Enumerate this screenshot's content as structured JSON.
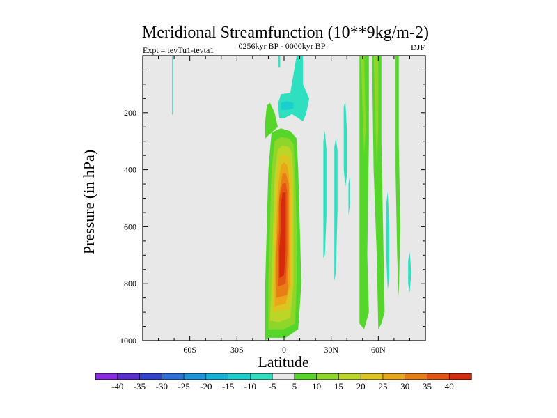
{
  "chart_data": {
    "type": "contour",
    "title": "Meridional Streamfunction (10**9kg/m-2)",
    "subtitle_left": "Expt = tevTu1-tevta1",
    "subtitle_center": "0256kyr BP - 0000kyr BP",
    "subtitle_right": "DJF",
    "xlabel": "Latitude",
    "ylabel": "Pressure (in hPa)",
    "xlim": [
      -90,
      90
    ],
    "ylim": [
      1000,
      0
    ],
    "x_ticks": [
      {
        "value": -60,
        "label": "60S"
      },
      {
        "value": -30,
        "label": "30S"
      },
      {
        "value": 0,
        "label": "0"
      },
      {
        "value": 30,
        "label": "30N"
      },
      {
        "value": 60,
        "label": "60N"
      }
    ],
    "y_ticks": [
      {
        "value": 200,
        "label": "200"
      },
      {
        "value": 400,
        "label": "400"
      },
      {
        "value": 600,
        "label": "600"
      },
      {
        "value": 800,
        "label": "800"
      },
      {
        "value": 1000,
        "label": "1000"
      }
    ],
    "background_color": "#e8e8e8",
    "colorbar": {
      "labels": [
        "-40",
        "-35",
        "-30",
        "-25",
        "-20",
        "-15",
        "-10",
        "-5",
        "5",
        "10",
        "15",
        "20",
        "25",
        "30",
        "35",
        "40"
      ],
      "colors": [
        "#8a2be2",
        "#5a2fd0",
        "#3443cf",
        "#2b6fd8",
        "#1e94dd",
        "#14b3d9",
        "#1bcfcf",
        "#2ee0c0",
        "#e8e8e8",
        "#56d62b",
        "#8ed62a",
        "#bcd627",
        "#dcc51f",
        "#e8a618",
        "#e97e15",
        "#e35512",
        "#d62a0c"
      ]
    },
    "regions": [
      {
        "name": "positive-cell-southern",
        "level": 5,
        "color": "#56d62b",
        "polygon": [
          [
            -12,
            1000
          ],
          [
            -12,
            800
          ],
          [
            -11,
            600
          ],
          [
            -10,
            400
          ],
          [
            -8,
            270
          ],
          [
            -2,
            255
          ],
          [
            4,
            265
          ],
          [
            8,
            290
          ],
          [
            9,
            400
          ],
          [
            10,
            600
          ],
          [
            11,
            800
          ],
          [
            9,
            960
          ],
          [
            1,
            990
          ],
          [
            -10,
            990
          ]
        ]
      },
      {
        "name": "positive-cell-southern",
        "level": 10,
        "color": "#8ed62a",
        "polygon": [
          [
            -10,
            960
          ],
          [
            -10,
            800
          ],
          [
            -9,
            600
          ],
          [
            -8,
            400
          ],
          [
            -6,
            300
          ],
          [
            -2,
            285
          ],
          [
            3,
            290
          ],
          [
            6,
            310
          ],
          [
            7,
            400
          ],
          [
            8,
            600
          ],
          [
            8,
            800
          ],
          [
            7,
            940
          ],
          [
            0,
            960
          ]
        ]
      },
      {
        "name": "positive-cell-southern",
        "level": 15,
        "color": "#bcd627",
        "polygon": [
          [
            -9,
            930
          ],
          [
            -8,
            800
          ],
          [
            -7,
            600
          ],
          [
            -6,
            420
          ],
          [
            -4,
            330
          ],
          [
            -1,
            315
          ],
          [
            3,
            320
          ],
          [
            5,
            340
          ],
          [
            6,
            420
          ],
          [
            6,
            600
          ],
          [
            6,
            800
          ],
          [
            4,
            920
          ],
          [
            -3,
            935
          ]
        ]
      },
      {
        "name": "positive-cell-southern",
        "level": 20,
        "color": "#dcc51f",
        "polygon": [
          [
            -7,
            900
          ],
          [
            -7,
            800
          ],
          [
            -6,
            600
          ],
          [
            -5,
            440
          ],
          [
            -3,
            355
          ],
          [
            0,
            345
          ],
          [
            3,
            355
          ],
          [
            4,
            380
          ],
          [
            5,
            450
          ],
          [
            5,
            600
          ],
          [
            5,
            800
          ],
          [
            3,
            890
          ]
        ]
      },
      {
        "name": "positive-cell-southern",
        "level": 25,
        "color": "#e8a618",
        "polygon": [
          [
            -6,
            880
          ],
          [
            -6,
            750
          ],
          [
            -5,
            600
          ],
          [
            -4,
            470
          ],
          [
            -2,
            385
          ],
          [
            0,
            375
          ],
          [
            2,
            385
          ],
          [
            3,
            420
          ],
          [
            4,
            500
          ],
          [
            4,
            650
          ],
          [
            4,
            800
          ],
          [
            1,
            870
          ]
        ]
      },
      {
        "name": "positive-cell-southern",
        "level": 30,
        "color": "#e97e15",
        "polygon": [
          [
            -5,
            850
          ],
          [
            -5,
            700
          ],
          [
            -4,
            580
          ],
          [
            -3,
            480
          ],
          [
            -1,
            415
          ],
          [
            1,
            410
          ],
          [
            3,
            450
          ],
          [
            3,
            550
          ],
          [
            3,
            700
          ],
          [
            2,
            840
          ]
        ]
      },
      {
        "name": "positive-cell-southern",
        "level": 35,
        "color": "#e35512",
        "polygon": [
          [
            -4,
            810
          ],
          [
            -4,
            700
          ],
          [
            -3,
            600
          ],
          [
            -3,
            500
          ],
          [
            -1,
            450
          ],
          [
            1,
            445
          ],
          [
            2,
            480
          ],
          [
            2,
            580
          ],
          [
            2,
            700
          ],
          [
            1,
            800
          ]
        ]
      },
      {
        "name": "positive-cell-southern",
        "level": 40,
        "color": "#d62a0c",
        "polygon": [
          [
            -3,
            780
          ],
          [
            -3,
            680
          ],
          [
            -2,
            600
          ],
          [
            -2,
            520
          ],
          [
            -1,
            480
          ],
          [
            1,
            480
          ],
          [
            1,
            560
          ],
          [
            1,
            680
          ],
          [
            0,
            770
          ]
        ]
      },
      {
        "name": "upper-positive-patch",
        "level": 5,
        "color": "#56d62b",
        "polygon": [
          [
            -12,
            290
          ],
          [
            -12,
            230
          ],
          [
            -11,
            175
          ],
          [
            -9,
            165
          ],
          [
            -6,
            200
          ],
          [
            -4,
            250
          ],
          [
            -7,
            265
          ]
        ]
      },
      {
        "name": "upper-negative-cell",
        "level": -5,
        "color": "#2ee0c0",
        "polygon": [
          [
            -3,
            220
          ],
          [
            -4,
            170
          ],
          [
            -2,
            135
          ],
          [
            4,
            130
          ],
          [
            8,
            0
          ],
          [
            12,
            0
          ],
          [
            12,
            100
          ],
          [
            16,
            150
          ],
          [
            14,
            205
          ],
          [
            12,
            230
          ],
          [
            8,
            215
          ],
          [
            5,
            205
          ],
          [
            0,
            220
          ]
        ]
      },
      {
        "name": "upper-negative-cell",
        "level": -10,
        "color": "#1bcfcf",
        "polygon": [
          [
            -2,
            190
          ],
          [
            -2,
            165
          ],
          [
            2,
            160
          ],
          [
            6,
            165
          ],
          [
            6,
            185
          ],
          [
            2,
            190
          ]
        ]
      },
      {
        "name": "thin-negative-strip-30N",
        "level": -5,
        "color": "#2ee0c0",
        "polygon": [
          [
            25,
            300
          ],
          [
            26,
            265
          ],
          [
            27,
            330
          ],
          [
            27,
            560
          ],
          [
            26,
            700
          ],
          [
            25,
            710
          ],
          [
            25,
            500
          ]
        ]
      },
      {
        "name": "thin-negative-strip-35N",
        "level": -5,
        "color": "#2ee0c0",
        "polygon": [
          [
            32,
            320
          ],
          [
            33,
            290
          ],
          [
            34,
            330
          ],
          [
            34,
            550
          ],
          [
            33,
            760
          ],
          [
            32,
            790
          ],
          [
            32,
            500
          ]
        ]
      },
      {
        "name": "thin-negative-strip-40N",
        "level": -5,
        "color": "#2ee0c0",
        "polygon": [
          [
            38,
            180
          ],
          [
            39,
            160
          ],
          [
            40,
            260
          ],
          [
            40,
            420
          ],
          [
            39,
            460
          ],
          [
            38,
            400
          ]
        ]
      },
      {
        "name": "thin-negative-strip-42N",
        "level": -5,
        "color": "#2ee0c0",
        "polygon": [
          [
            41,
            450
          ],
          [
            42,
            420
          ],
          [
            42,
            520
          ],
          [
            41,
            560
          ]
        ]
      },
      {
        "name": "positive-band-50N",
        "level": 5,
        "color": "#56d62b",
        "polygon": [
          [
            48,
            0
          ],
          [
            54,
            0
          ],
          [
            54,
            300
          ],
          [
            53,
            700
          ],
          [
            54,
            900
          ],
          [
            51,
            960
          ],
          [
            48,
            940
          ],
          [
            48,
            600
          ]
        ]
      },
      {
        "name": "positive-band-50N",
        "level": 10,
        "color": "#8ed62a",
        "polygon": [
          [
            49,
            0
          ],
          [
            51,
            0
          ],
          [
            52,
            250
          ],
          [
            51,
            350
          ],
          [
            50,
            200
          ]
        ]
      },
      {
        "name": "positive-band-58N",
        "level": 5,
        "color": "#56d62b",
        "polygon": [
          [
            56,
            0
          ],
          [
            62,
            0
          ],
          [
            62,
            300
          ],
          [
            63,
            600
          ],
          [
            64,
            900
          ],
          [
            62,
            940
          ],
          [
            60,
            960
          ],
          [
            59,
            700
          ],
          [
            57,
            400
          ]
        ]
      },
      {
        "name": "positive-band-58N",
        "level": 10,
        "color": "#8ed62a",
        "polygon": [
          [
            57,
            0
          ],
          [
            60,
            0
          ],
          [
            60,
            250
          ],
          [
            59,
            400
          ],
          [
            58,
            200
          ]
        ]
      },
      {
        "name": "thin-negative-strip-65N",
        "level": -5,
        "color": "#2ee0c0",
        "polygon": [
          [
            65,
            520
          ],
          [
            66,
            480
          ],
          [
            67,
            600
          ],
          [
            67,
            780
          ],
          [
            66,
            820
          ],
          [
            65,
            700
          ]
        ]
      },
      {
        "name": "thin-positive-strip-72N",
        "level": 5,
        "color": "#56d62b",
        "polygon": [
          [
            71,
            0
          ],
          [
            73,
            0
          ],
          [
            73,
            300
          ],
          [
            74,
            600
          ],
          [
            73,
            850
          ],
          [
            72,
            700
          ],
          [
            71,
            400
          ]
        ]
      },
      {
        "name": "thin-negative-strip-80N",
        "level": -5,
        "color": "#2ee0c0",
        "polygon": [
          [
            79,
            720
          ],
          [
            80,
            690
          ],
          [
            81,
            760
          ],
          [
            80,
            830
          ],
          [
            79,
            800
          ]
        ]
      },
      {
        "name": "thin-negative-line-70S",
        "level": -5,
        "color": "#2ee0c0",
        "polygon": [
          [
            -71.3,
            0
          ],
          [
            -70.7,
            0
          ],
          [
            -70.7,
            200
          ],
          [
            -71.3,
            210
          ]
        ]
      },
      {
        "name": "tiny-negative-dot-3S",
        "level": -5,
        "color": "#2ee0c0",
        "polygon": [
          [
            -3.5,
            0
          ],
          [
            -2.5,
            0
          ],
          [
            -2.5,
            40
          ],
          [
            -3.5,
            40
          ]
        ]
      }
    ]
  }
}
